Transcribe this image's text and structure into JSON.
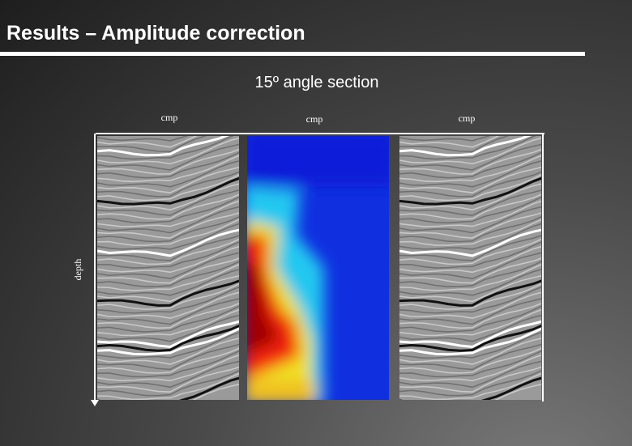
{
  "header": {
    "title": "Results – Amplitude correction"
  },
  "figure": {
    "title": "15º angle section",
    "panels": [
      {
        "x_label": "cmp"
      },
      {
        "x_label": "cmp"
      },
      {
        "x_label": "cmp"
      }
    ],
    "y_label": "depth"
  }
}
